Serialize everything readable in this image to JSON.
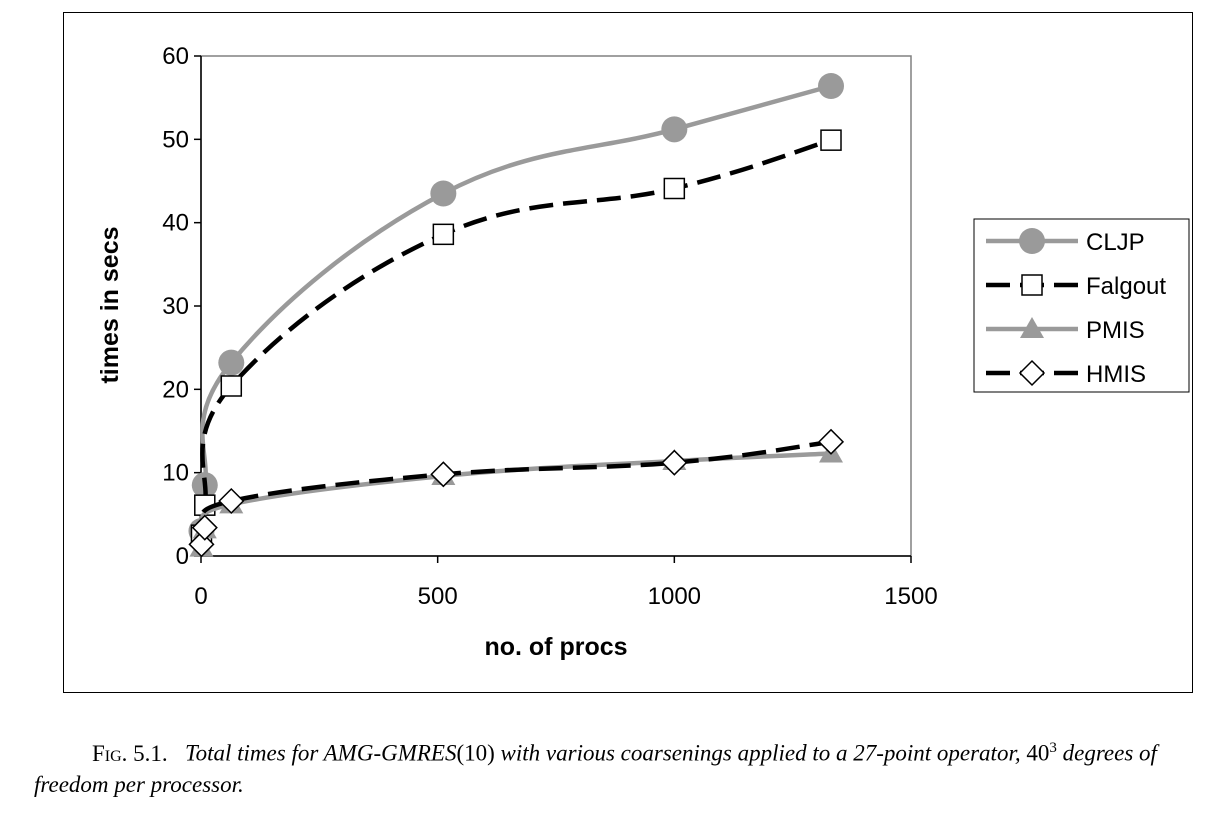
{
  "chart_data": {
    "type": "line",
    "xlabel": "no. of procs",
    "ylabel": "times in secs",
    "xlim": [
      0,
      1500
    ],
    "ylim": [
      0,
      60
    ],
    "xticks": [
      0,
      500,
      1000,
      1500
    ],
    "yticks": [
      0,
      10,
      20,
      30,
      40,
      50,
      60
    ],
    "xtick_labels": [
      "0",
      "500",
      "1000",
      "1500"
    ],
    "ytick_labels": [
      "0",
      "10",
      "20",
      "30",
      "40",
      "50",
      "60"
    ],
    "grid": false,
    "legend_position": "right",
    "series": [
      {
        "name": "CLJP",
        "x": [
          1,
          8,
          64,
          512,
          1000,
          1331
        ],
        "y": [
          3.0,
          8.5,
          23.2,
          43.5,
          51.2,
          56.4
        ],
        "color": "#9a9a9a",
        "marker": "circle",
        "dash": "solid"
      },
      {
        "name": "Falgout",
        "x": [
          1,
          8,
          64,
          512,
          1000,
          1331
        ],
        "y": [
          2.5,
          6.1,
          20.4,
          38.6,
          44.1,
          49.9
        ],
        "color": "#000000",
        "marker": "square",
        "dash": "dashed"
      },
      {
        "name": "PMIS",
        "x": [
          1,
          8,
          64,
          512,
          1000,
          1331
        ],
        "y": [
          1.0,
          3.2,
          6.2,
          9.6,
          11.4,
          12.3
        ],
        "color": "#9a9a9a",
        "marker": "triangle",
        "dash": "solid"
      },
      {
        "name": "HMIS",
        "x": [
          1,
          8,
          64,
          512,
          1000,
          1331
        ],
        "y": [
          1.4,
          3.4,
          6.6,
          9.8,
          11.2,
          13.7
        ],
        "color": "#000000",
        "marker": "diamond",
        "dash": "dashed"
      }
    ]
  },
  "caption": {
    "label": "Fig. 5.1.",
    "text_part1": "Total times for AMG-GMRES",
    "text_paren": "(10)",
    "text_part2": " with various coarsenings applied to a 27-point operator, ",
    "base": "40",
    "exponent": "3",
    "text_part3": " degrees of freedom per processor."
  }
}
